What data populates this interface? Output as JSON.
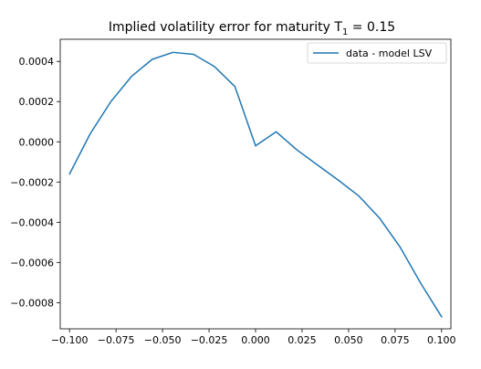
{
  "chart_data": {
    "type": "line",
    "title": "Implied volatility error for maturity T",
    "title_subscript": "1",
    "title_suffix": " = 0.15",
    "xlabel": "",
    "ylabel": "",
    "xlim": [
      -0.105,
      0.105
    ],
    "ylim": [
      -0.00093,
      0.00051
    ],
    "grid": false,
    "legend_position": "top-right",
    "x_ticks": [
      -0.1,
      -0.075,
      -0.05,
      -0.025,
      0.0,
      0.025,
      0.05,
      0.075,
      0.1
    ],
    "x_tick_labels": [
      "−0.100",
      "−0.075",
      "−0.050",
      "−0.025",
      "0.000",
      "0.025",
      "0.050",
      "0.075",
      "0.100"
    ],
    "y_ticks": [
      -0.0008,
      -0.0006,
      -0.0004,
      -0.0002,
      0.0,
      0.0002,
      0.0004
    ],
    "y_tick_labels": [
      "−0.0008",
      "−0.0006",
      "−0.0004",
      "−0.0002",
      "0.0000",
      "0.0002",
      "0.0004"
    ],
    "series": [
      {
        "name": "data - model LSV",
        "color": "#1f77b4",
        "x": [
          -0.1,
          -0.0889,
          -0.0778,
          -0.0667,
          -0.0556,
          -0.0444,
          -0.0333,
          -0.0222,
          -0.0111,
          0.0,
          0.0111,
          0.0222,
          0.0333,
          0.0444,
          0.0556,
          0.0667,
          0.0778,
          0.0889,
          0.1
        ],
        "y": [
          -0.00016,
          4e-05,
          0.0002,
          0.000325,
          0.00041,
          0.000445,
          0.000435,
          0.000375,
          0.000275,
          -2e-05,
          5e-05,
          -4e-05,
          -0.000115,
          -0.00019,
          -0.00027,
          -0.00038,
          -0.000525,
          -0.000705,
          -0.00087
        ]
      }
    ]
  }
}
